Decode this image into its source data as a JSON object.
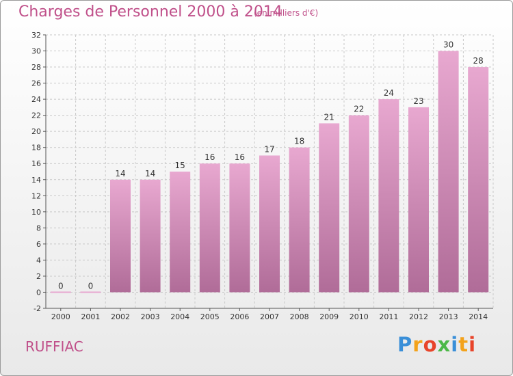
{
  "header": {
    "title": "Charges de Personnel 2000 à 2014",
    "subtitle": "(en milliers d'€)"
  },
  "footer": {
    "commune": "RUFFIAC",
    "logo": [
      "P",
      "r",
      "o",
      "x",
      "i",
      "t",
      "i"
    ]
  },
  "colors": {
    "bar_top": "#e8a8d0",
    "bar_bottom": "#b06c98",
    "text_accent": "#c0508a",
    "grid": "#c8c8c8"
  },
  "chart_data": {
    "type": "bar",
    "categories": [
      "2000",
      "2001",
      "2002",
      "2003",
      "2004",
      "2005",
      "2006",
      "2007",
      "2008",
      "2009",
      "2010",
      "2011",
      "2012",
      "2013",
      "2014"
    ],
    "values": [
      0,
      0,
      14,
      14,
      15,
      16,
      16,
      17,
      18,
      21,
      22,
      24,
      23,
      30,
      28
    ],
    "data_labels": [
      "0",
      "0",
      "14",
      "14",
      "15",
      "16",
      "16",
      "17",
      "18",
      "21",
      "22",
      "24",
      "23",
      "30",
      "28"
    ],
    "yticks": [
      -2,
      0,
      2,
      4,
      6,
      8,
      10,
      12,
      14,
      16,
      18,
      20,
      22,
      24,
      26,
      28,
      30,
      32
    ],
    "ylim": [
      -2,
      32
    ],
    "grid": true,
    "legend": "none"
  }
}
